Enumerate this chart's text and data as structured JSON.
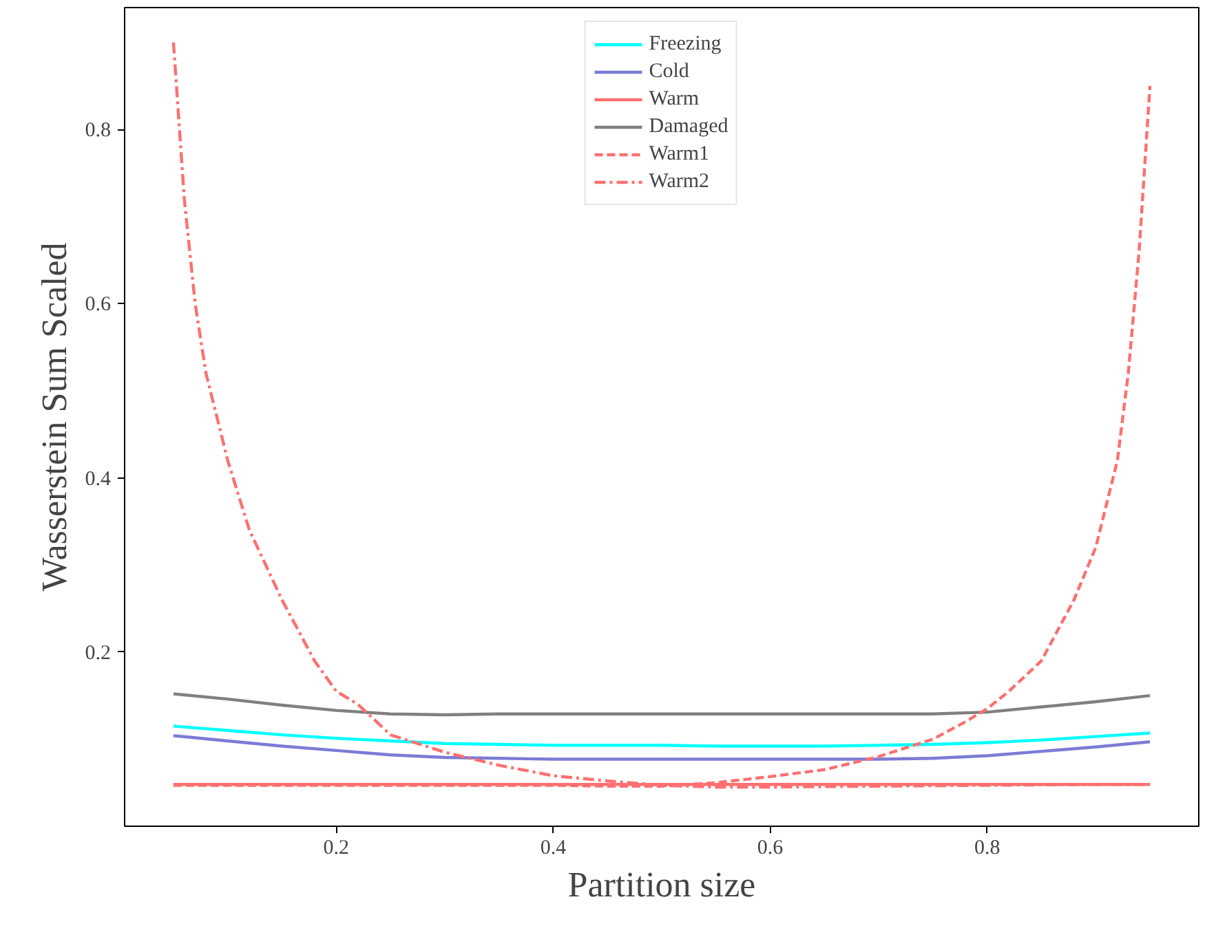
{
  "chart_data": {
    "type": "line",
    "xlabel": "Partition size",
    "ylabel": "Wasserstein Sum Scaled",
    "x": [
      0.05,
      0.1,
      0.15,
      0.2,
      0.25,
      0.3,
      0.35,
      0.4,
      0.45,
      0.5,
      0.55,
      0.6,
      0.65,
      0.7,
      0.75,
      0.8,
      0.85,
      0.9,
      0.95
    ],
    "xlim": [
      0.005,
      0.995
    ],
    "ylim": [
      0.0,
      0.94
    ],
    "xticks": [
      0.2,
      0.4,
      0.6,
      0.8
    ],
    "yticks": [
      0.2,
      0.4,
      0.6,
      0.8
    ],
    "grid": false,
    "legend": "top",
    "marker": "none",
    "series": [
      {
        "name": "Freezing",
        "color": "#00ffff",
        "line_style": "solid",
        "values": [
          0.115,
          0.11,
          0.105,
          0.101,
          0.098,
          0.095,
          0.094,
          0.093,
          0.093,
          0.093,
          0.092,
          0.092,
          0.092,
          0.093,
          0.094,
          0.096,
          0.099,
          0.103,
          0.107
        ]
      },
      {
        "name": "Cold",
        "color": "#7b7bd6",
        "line_style": "solid",
        "values": [
          0.104,
          0.098,
          0.092,
          0.087,
          0.082,
          0.079,
          0.078,
          0.077,
          0.077,
          0.077,
          0.077,
          0.077,
          0.077,
          0.077,
          0.078,
          0.081,
          0.086,
          0.091,
          0.097
        ]
      },
      {
        "name": "Warm",
        "color": "#ff7070",
        "line_style": "solid",
        "values": [
          0.048,
          0.048,
          0.048,
          0.048,
          0.048,
          0.048,
          0.048,
          0.048,
          0.048,
          0.048,
          0.048,
          0.048,
          0.048,
          0.048,
          0.048,
          0.048,
          0.048,
          0.048,
          0.048
        ]
      },
      {
        "name": "Damaged",
        "color": "#808080",
        "line_style": "solid",
        "values": [
          0.152,
          0.146,
          0.139,
          0.133,
          0.129,
          0.128,
          0.129,
          0.129,
          0.129,
          0.129,
          0.129,
          0.129,
          0.129,
          0.129,
          0.129,
          0.131,
          0.137,
          0.143,
          0.15
        ]
      },
      {
        "name": "Warm1",
        "color": "#ff7070",
        "line_style": "dashed",
        "x": [
          0.05,
          0.1,
          0.2,
          0.3,
          0.4,
          0.45,
          0.5,
          0.55,
          0.6,
          0.65,
          0.7,
          0.75,
          0.78,
          0.8,
          0.82,
          0.85,
          0.88,
          0.9,
          0.92,
          0.93,
          0.94,
          0.95
        ],
        "values": [
          0.047,
          0.047,
          0.047,
          0.047,
          0.047,
          0.046,
          0.046,
          0.05,
          0.057,
          0.065,
          0.08,
          0.1,
          0.12,
          0.135,
          0.155,
          0.19,
          0.26,
          0.32,
          0.42,
          0.52,
          0.66,
          0.85
        ]
      },
      {
        "name": "Warm2",
        "color": "#ff7070",
        "line_style": "dashdot",
        "x": [
          0.05,
          0.06,
          0.07,
          0.08,
          0.1,
          0.12,
          0.15,
          0.18,
          0.2,
          0.22,
          0.25,
          0.3,
          0.35,
          0.4,
          0.45,
          0.5,
          0.55,
          0.6,
          0.7,
          0.8,
          0.9,
          0.95
        ],
        "values": [
          0.9,
          0.72,
          0.6,
          0.52,
          0.42,
          0.34,
          0.26,
          0.19,
          0.155,
          0.14,
          0.105,
          0.085,
          0.07,
          0.058,
          0.052,
          0.047,
          0.045,
          0.045,
          0.046,
          0.047,
          0.048,
          0.048
        ]
      }
    ]
  }
}
